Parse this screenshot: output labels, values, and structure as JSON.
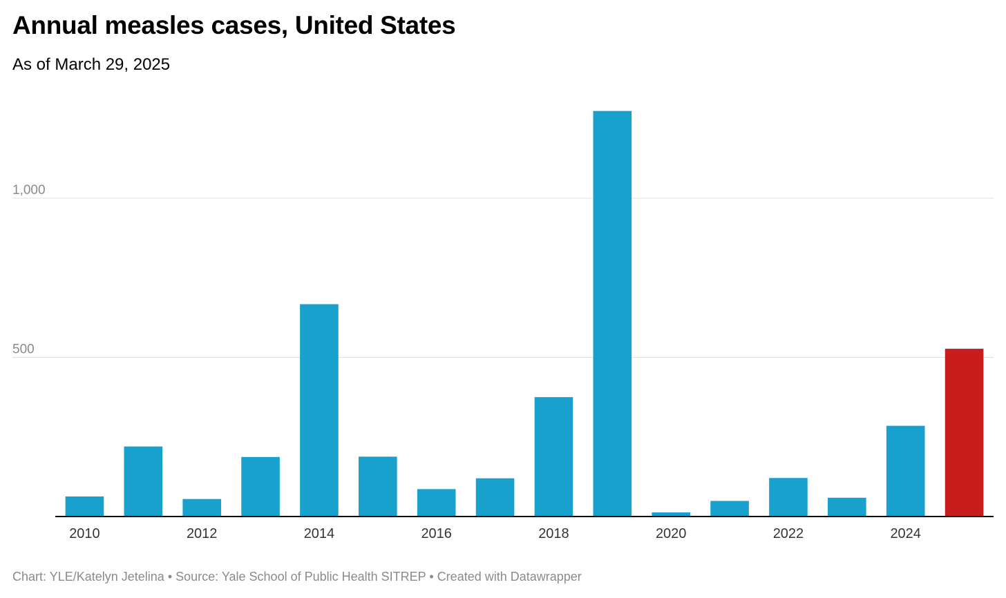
{
  "header": {
    "title": "Annual measles cases, United States",
    "subtitle": "As of March 29, 2025"
  },
  "footer": {
    "chart_credit": "Chart: YLE/Katelyn Jetelina",
    "separator": "•",
    "source": "Source: Yale School of Public Health SITREP",
    "made_with": "Created with Datawrapper"
  },
  "chart_data": {
    "type": "bar",
    "title": "Annual measles cases, United States",
    "subtitle": "As of March 29, 2025",
    "xlabel": "",
    "ylabel": "",
    "categories": [
      "2010",
      "2011",
      "2012",
      "2013",
      "2014",
      "2015",
      "2016",
      "2017",
      "2018",
      "2019",
      "2020",
      "2021",
      "2022",
      "2023",
      "2024",
      "2025"
    ],
    "x_tick_labels": [
      "2010",
      "2012",
      "2014",
      "2016",
      "2018",
      "2020",
      "2022",
      "2024"
    ],
    "values": [
      63,
      220,
      55,
      187,
      667,
      188,
      86,
      120,
      375,
      1274,
      13,
      49,
      121,
      59,
      285,
      527
    ],
    "ylim": [
      0,
      1300
    ],
    "y_ticks": [
      {
        "value": 500,
        "label": "500"
      },
      {
        "value": 1000,
        "label": "1,000"
      }
    ],
    "grid": true,
    "colors": {
      "bar": "#18a1cd",
      "highlight": "#c71e1d",
      "gridline": "#e0e0e0",
      "axis_line": "#000000",
      "tick_text": "#8a8a8a",
      "x_tick_text": "#333333"
    },
    "highlight_category": "2025"
  }
}
